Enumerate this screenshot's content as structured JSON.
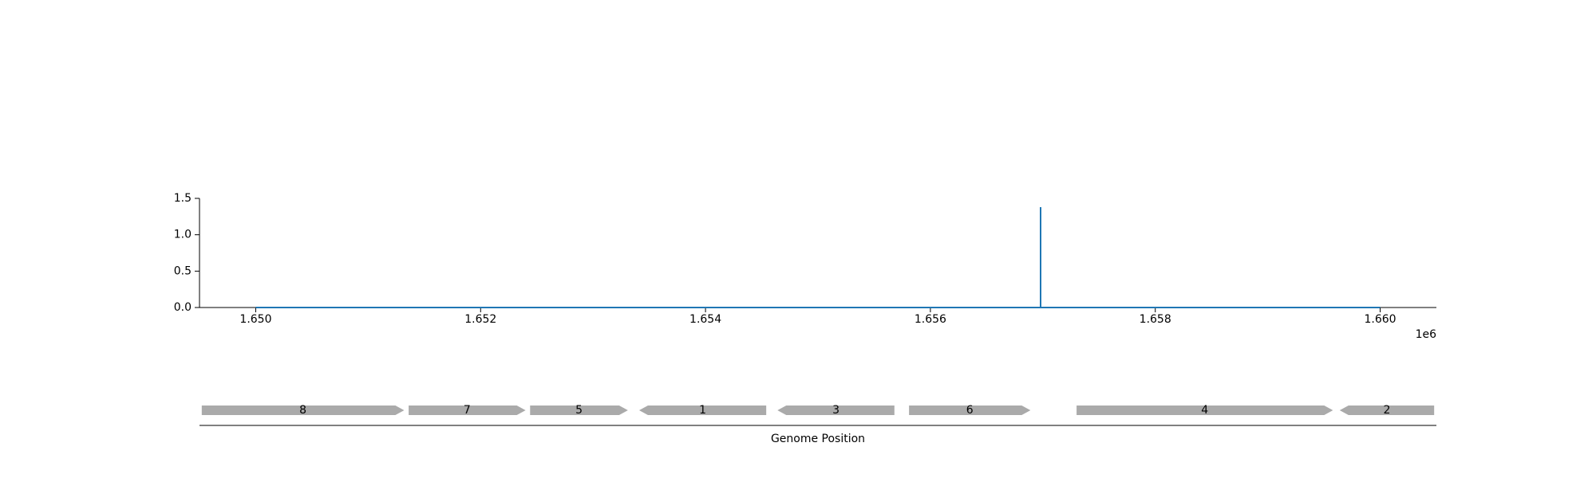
{
  "chart_data": [
    {
      "type": "line",
      "series": [
        {
          "x": [
            1650000,
            1656980,
            1656980,
            1656980,
            1660000
          ],
          "y": [
            0,
            0,
            1.38,
            0,
            0
          ],
          "color": "#1f77b4"
        }
      ],
      "xlim": [
        1649500,
        1660500
      ],
      "ylim": [
        0,
        1.5
      ],
      "x_ticks": [
        1650000,
        1652000,
        1654000,
        1656000,
        1658000,
        1660000
      ],
      "x_tick_labels": [
        "1.650",
        "1.652",
        "1.654",
        "1.656",
        "1.658",
        "1.660"
      ],
      "x_offset_label": "1e6",
      "y_ticks": [
        0,
        0.5,
        1.0,
        1.5
      ],
      "y_tick_labels": [
        "0.0",
        "0.5",
        "1.0",
        "1.5"
      ],
      "spines": "left-bottom",
      "grid": false
    },
    {
      "type": "gene-track",
      "xlabel": "Genome Position",
      "xlim": [
        1649500,
        1660500
      ],
      "color": "#aaaaaa",
      "genes": [
        {
          "label": "8",
          "start": 1649520,
          "end": 1651320,
          "strand": 1
        },
        {
          "label": "7",
          "start": 1651360,
          "end": 1652400,
          "strand": 1
        },
        {
          "label": "5",
          "start": 1652440,
          "end": 1653310,
          "strand": 1
        },
        {
          "label": "1",
          "start": 1653410,
          "end": 1654540,
          "strand": -1
        },
        {
          "label": "3",
          "start": 1654640,
          "end": 1655680,
          "strand": -1
        },
        {
          "label": "6",
          "start": 1655810,
          "end": 1656890,
          "strand": 1
        },
        {
          "label": "4",
          "start": 1657300,
          "end": 1659580,
          "strand": 1
        },
        {
          "label": "2",
          "start": 1659640,
          "end": 1660480,
          "strand": -1
        }
      ]
    }
  ]
}
